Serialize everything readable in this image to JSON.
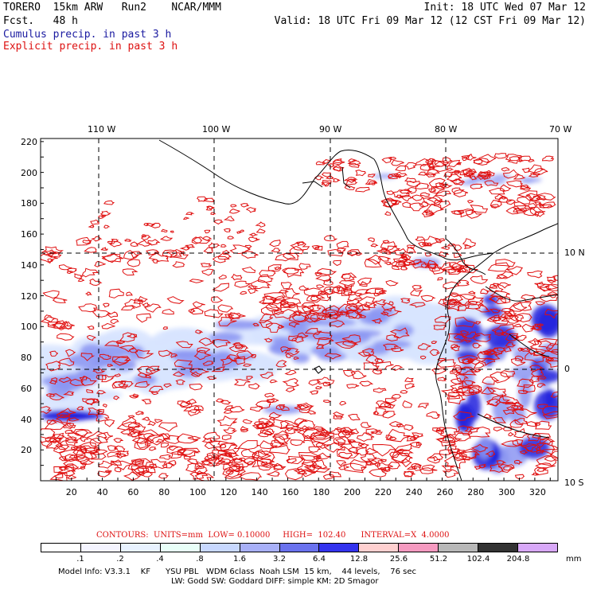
{
  "header": {
    "model": "TORERO  15km ARW   Run2    NCAR/MMM",
    "init": "Init: 18 UTC Wed 07 Mar 12",
    "fcst": "Fcst.   48 h",
    "valid": "Valid: 18 UTC Fri 09 Mar 12 (12 CST Fri 09 Mar 12)",
    "field1": "Cumulus precip. in past 3 h",
    "field2": "Explicit precip. in past 3 h"
  },
  "colors": {
    "field1": "#1a1aa0",
    "field2": "#dd1111",
    "contour": "#e01010",
    "shade_light": "#d8e4ff",
    "shade_mid": "#8b95f2",
    "shade_dark": "#2222dd",
    "land": "#000000"
  },
  "map": {
    "lon_labels": [
      "110 W",
      "100 W",
      "90 W",
      "80 W",
      "70 W"
    ],
    "lat_labels": [
      "10 N",
      "0",
      "10 S"
    ],
    "y_ticks": [
      "220",
      "200",
      "180",
      "160",
      "140",
      "120",
      "100",
      "80",
      "60",
      "40",
      "20"
    ],
    "x_ticks": [
      "20",
      "40",
      "60",
      "80",
      "100",
      "120",
      "140",
      "160",
      "180",
      "200",
      "220",
      "240",
      "260",
      "280",
      "300",
      "320"
    ]
  },
  "legend": {
    "contours": "CONTOURS:  UNITS=mm  LOW= 0.10000     HIGH=  102.40      INTERVAL=X  4.0000",
    "unit": "mm",
    "levels": [
      ".1",
      ".2",
      ".4",
      ".8",
      "1.6",
      "3.2",
      "6.4",
      "12.8",
      "25.6",
      "51.2",
      "102.4",
      "204.8"
    ],
    "swatches": [
      "#ffffff",
      "#f4f4ff",
      "#e8f2ff",
      "#e8fff8",
      "#c8d8ff",
      "#a8b0f8",
      "#6a72ee",
      "#3333ee",
      "#ffd0d0",
      "#f59ac0",
      "#b8b8b8",
      "#333333",
      "#d8a8f8"
    ]
  },
  "footer": {
    "line1": "Model Info: V3.3.1    KF      YSU PBL   WDM 6class  Noah LSM  15 km,    44 levels,    76 sec",
    "line2": "LW: Godd SW: Goddard DIFF: simple KM: 2D Smagor"
  }
}
